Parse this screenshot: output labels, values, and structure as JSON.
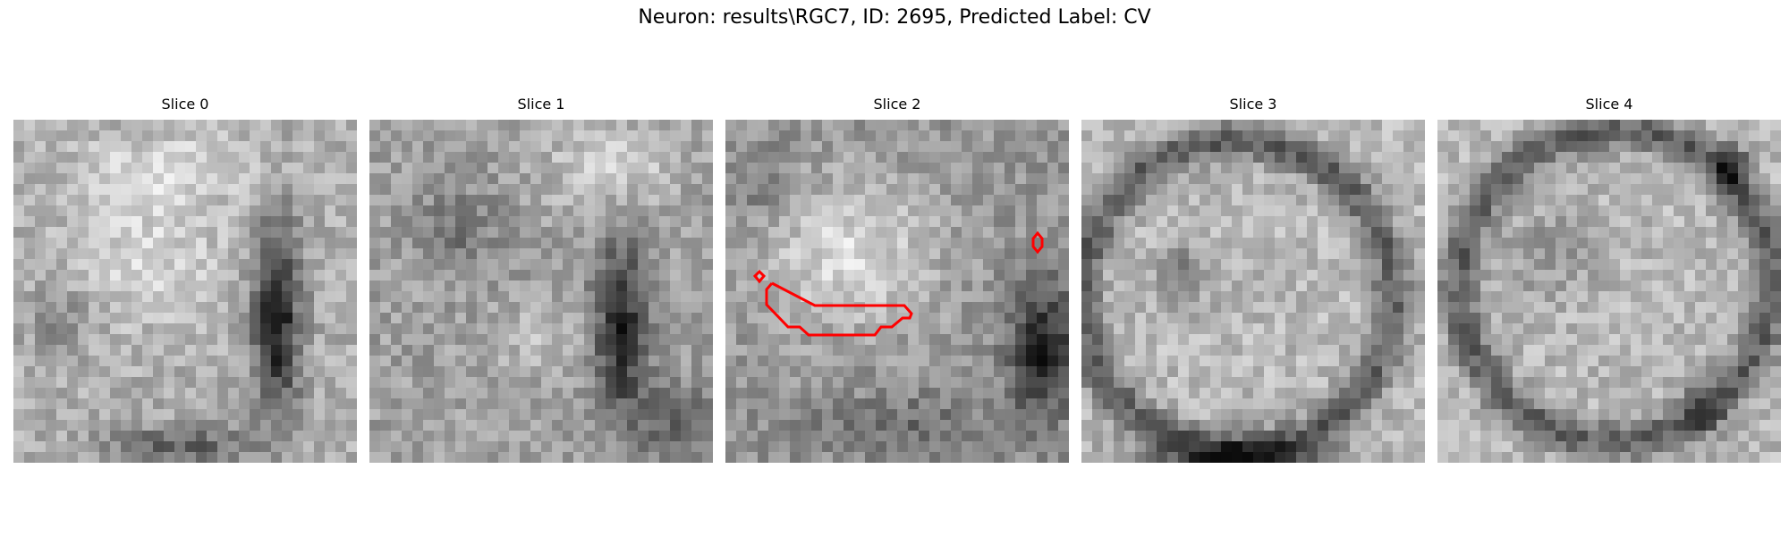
{
  "figure": {
    "title": "Neuron: results\\RGC7, ID: 2695, Predicted Label: CV",
    "grid_size": 32,
    "contour_color": "#ff0000"
  },
  "panels": [
    {
      "title": "Slice 0"
    },
    {
      "title": "Slice 1"
    },
    {
      "title": "Slice 2"
    },
    {
      "title": "Slice 3"
    },
    {
      "title": "Slice 4"
    }
  ]
}
